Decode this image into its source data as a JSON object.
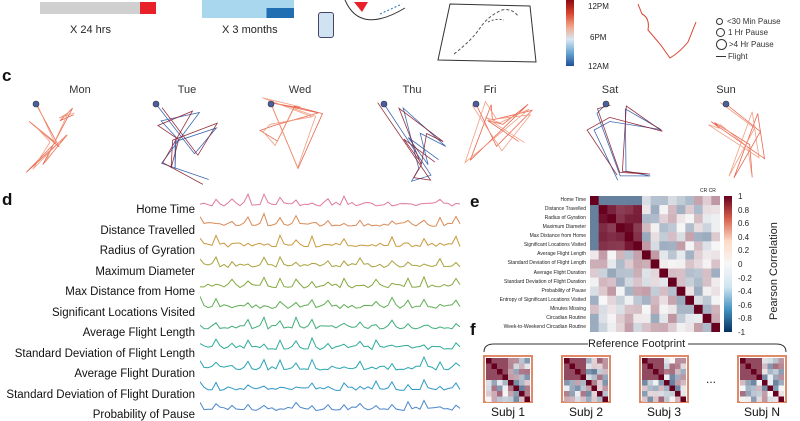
{
  "panel_letters": {
    "c": "c",
    "d": "d",
    "e": "e",
    "f": "f"
  },
  "top": {
    "bar1_label": "X 24 hrs",
    "bar2_label": "X 3 months",
    "time_colorbar": [
      "12PM",
      "6PM",
      "12AM"
    ],
    "legend": [
      "<30 Min Pause",
      "1 Hr Pause",
      ">4 Hr Pause",
      "Flight"
    ]
  },
  "days": [
    "Mon",
    "Tue",
    "Wed",
    "Thu",
    "Fri",
    "Sat",
    "Sun"
  ],
  "features": [
    "Home Time",
    "Distance Travelled",
    "Radius of Gyration",
    "Maximum Diameter",
    "Max Distance from Home",
    "Significant Locations Visited",
    "Average Flight Length",
    "Standard Deviation of Flight Length",
    "Average Flight Duration",
    "Standard  Deviation of Flight Duration",
    "Probability of Pause"
  ],
  "heatmap": {
    "labels": [
      "Home Time",
      "Distance Travelled",
      "Radius of Gyration",
      "Maximum Diameter",
      "Max Distance from Home",
      "Significant Locations Visited",
      "Average Flight Length",
      "Standard Deviation of Flight Length",
      "Average Flight Duration",
      "Standard Deviation of Flight Duration",
      "Probability of Pause",
      "Entropy of Significant Locations Visited",
      "Minutes Missing",
      "Circadian Routine",
      "Week-to-Weekend Circadian Routine"
    ],
    "corner_label": "CR CR",
    "colorbar_title": "Pearson Correlation",
    "colorbar_ticks": [
      "1",
      "0.8",
      "0.6",
      "0.4",
      "0.2",
      "0",
      "-0.2",
      "-0.4",
      "-0.6",
      "-0.8",
      "-1"
    ]
  },
  "reference": {
    "title": "Reference Footprint",
    "subjects": [
      "Subj 1",
      "Subj 2",
      "Subj 3",
      "Subj N"
    ],
    "ellipsis": "..."
  }
}
